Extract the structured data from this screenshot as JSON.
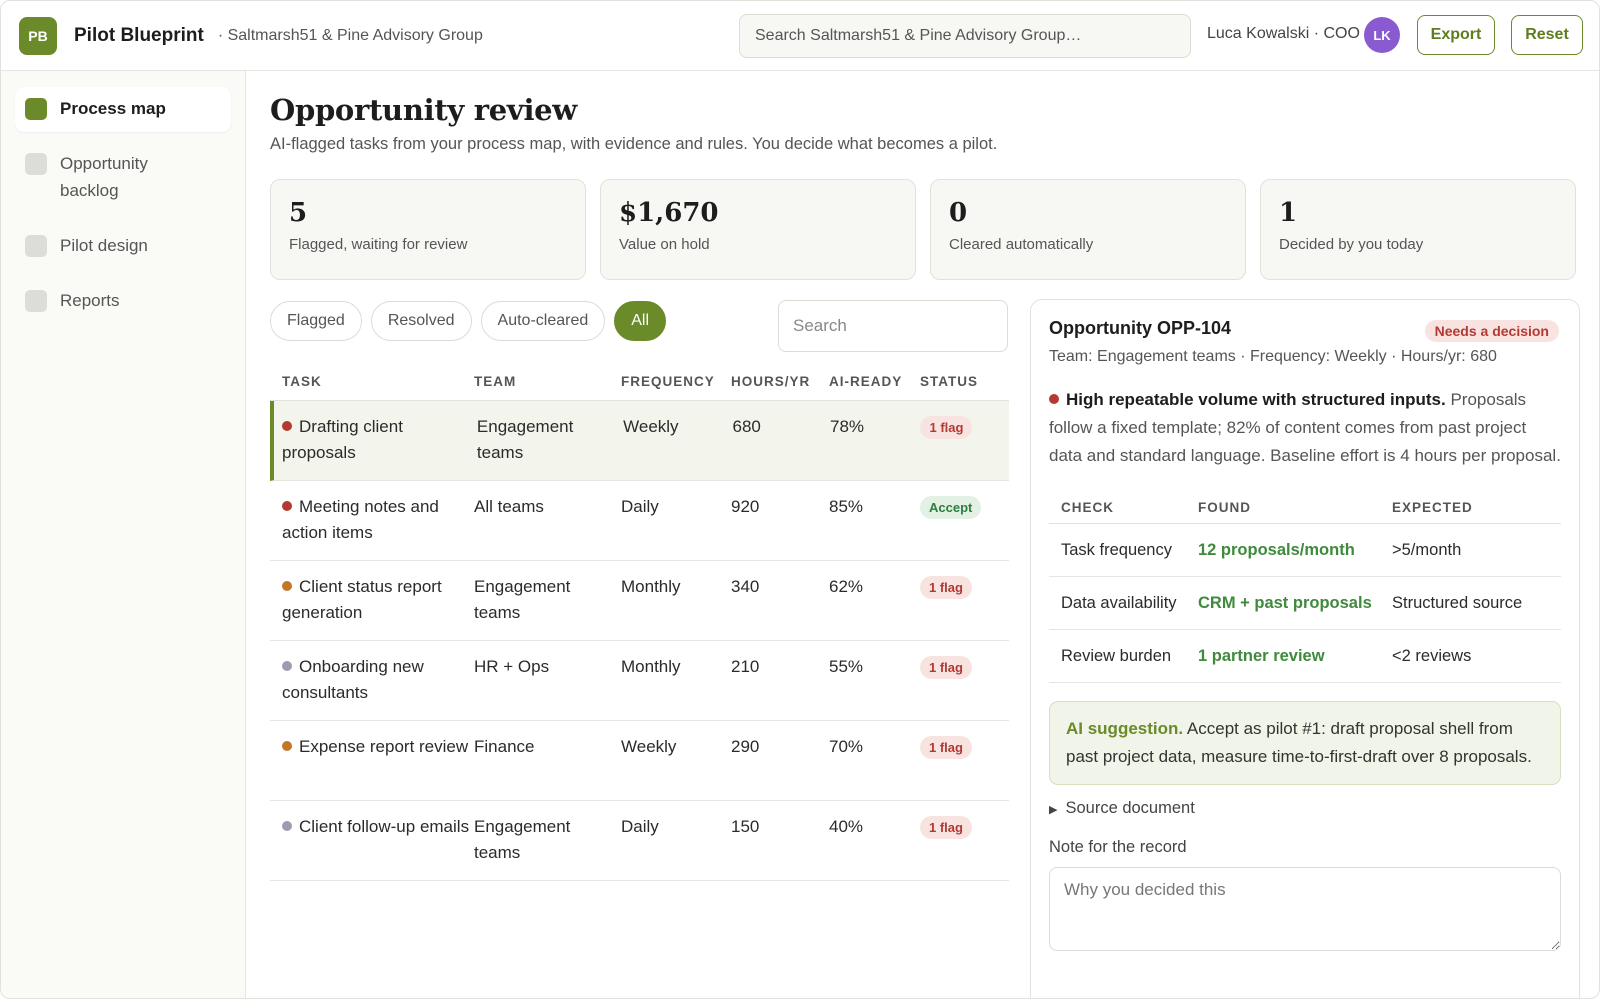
{
  "app": {
    "logo_text": "PB",
    "title": "Pilot Blueprint",
    "org": "· Saltmarsh51 & Pine Advisory Group",
    "search_placeholder": "Search Saltmarsh51 & Pine Advisory Group…",
    "user": "Luca Kowalski · COO",
    "avatar_initials": "LK",
    "export_label": "Export",
    "reset_label": "Reset",
    "accent_color": "#6b8a2a"
  },
  "sidebar": {
    "items": [
      {
        "label": "Process map",
        "active": true
      },
      {
        "label": "Opportunity backlog",
        "active": false
      },
      {
        "label": "Pilot design",
        "active": false
      },
      {
        "label": "Reports",
        "active": false
      }
    ]
  },
  "page": {
    "title": "Opportunity review",
    "subtitle": "AI-flagged tasks from your process map, with evidence and rules. You decide what becomes a pilot."
  },
  "stats": [
    {
      "value": "5",
      "label": "Flagged, waiting for review"
    },
    {
      "value": "$1,670",
      "label": "Value on hold"
    },
    {
      "value": "0",
      "label": "Cleared automatically"
    },
    {
      "value": "1",
      "label": "Decided by you today"
    }
  ],
  "filters": {
    "chips": [
      {
        "label": "Flagged",
        "active": false
      },
      {
        "label": "Resolved",
        "active": false
      },
      {
        "label": "Auto-cleared",
        "active": false
      },
      {
        "label": "All",
        "active": true
      }
    ],
    "search_placeholder": "Search"
  },
  "table": {
    "headers": [
      "TASK",
      "TEAM",
      "FREQUENCY",
      "HOURS/YR",
      "AI-READY",
      "STATUS"
    ],
    "rows": [
      {
        "dot": "#b23a32",
        "task": "Drafting client proposals",
        "team": "Engagement teams",
        "frequency": "Weekly",
        "hours": "680",
        "ai": "78%",
        "status": "1 flag",
        "status_type": "flag",
        "selected": true
      },
      {
        "dot": "#b23a32",
        "task": "Meeting notes and action items",
        "team": "All teams",
        "frequency": "Daily",
        "hours": "920",
        "ai": "85%",
        "status": "Accept",
        "status_type": "accept",
        "selected": false
      },
      {
        "dot": "#c0772a",
        "task": "Client status report generation",
        "team": "Engagement teams",
        "frequency": "Monthly",
        "hours": "340",
        "ai": "62%",
        "status": "1 flag",
        "status_type": "flag",
        "selected": false
      },
      {
        "dot": "#9c9cb0",
        "task": "Onboarding new consultants",
        "team": "HR + Ops",
        "frequency": "Monthly",
        "hours": "210",
        "ai": "55%",
        "status": "1 flag",
        "status_type": "flag",
        "selected": false
      },
      {
        "dot": "#c0772a",
        "task": "Expense report review",
        "team": "Finance",
        "frequency": "Weekly",
        "hours": "290",
        "ai": "70%",
        "status": "1 flag",
        "status_type": "flag",
        "selected": false
      },
      {
        "dot": "#9c9cb0",
        "task": "Client follow-up emails",
        "team": "Engagement teams",
        "frequency": "Daily",
        "hours": "150",
        "ai": "40%",
        "status": "1 flag",
        "status_type": "flag",
        "selected": false
      }
    ]
  },
  "panel": {
    "title": "Opportunity OPP-104",
    "badge": "Needs a decision",
    "meta": "Team: Engagement teams · Frequency: Weekly · Hours/yr: 680",
    "reason_bold": "High repeatable volume with structured inputs.",
    "reason_text": " Proposals follow a fixed template; 82% of content comes from past project data and standard language. Baseline effort is 4 hours per proposal.",
    "check_headers": [
      "CHECK",
      "FOUND",
      "EXPECTED"
    ],
    "checks": [
      {
        "check": "Task frequency",
        "found": "12 proposals/month",
        "expected": ">5/month"
      },
      {
        "check": "Data availability",
        "found": "CRM + past proposals",
        "expected": "Structured source"
      },
      {
        "check": "Review burden",
        "found": "1 partner review",
        "expected": "<2 reviews"
      }
    ],
    "suggestion_bold": "AI suggestion.",
    "suggestion_text": " Accept as pilot #1: draft proposal shell from past project data, measure time-to-first-draft over 8 proposals.",
    "source_label": "Source document",
    "note_label": "Note for the record",
    "note_placeholder": "Why you decided this"
  }
}
